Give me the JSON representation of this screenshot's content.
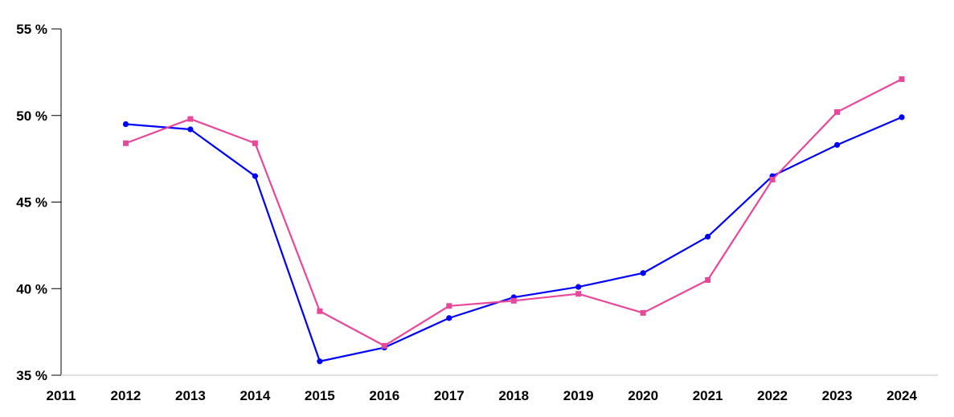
{
  "chart_data": {
    "type": "line",
    "x": [
      "2011",
      "2012",
      "2013",
      "2014",
      "2015",
      "2016",
      "2017",
      "2018",
      "2019",
      "2020",
      "2021",
      "2022",
      "2023",
      "2024"
    ],
    "series": [
      {
        "color": "#0000ff",
        "marker": "circle",
        "values": [
          null,
          49.5,
          49.2,
          46.5,
          35.8,
          36.6,
          38.3,
          39.5,
          40.1,
          40.9,
          43.0,
          46.5,
          48.3,
          49.9
        ]
      },
      {
        "color": "#e8489a",
        "marker": "square",
        "values": [
          null,
          48.4,
          49.8,
          48.4,
          38.7,
          36.7,
          39.0,
          39.3,
          39.7,
          38.6,
          40.5,
          46.3,
          50.2,
          52.1
        ]
      }
    ],
    "ylim": [
      35,
      55
    ],
    "yticks": [
      35,
      40,
      45,
      50,
      55
    ],
    "ytick_labels": [
      "35 %",
      "40 %",
      "45 %",
      "50 %",
      "55 %"
    ],
    "grid": false,
    "title": "",
    "xlabel": "",
    "ylabel": ""
  }
}
